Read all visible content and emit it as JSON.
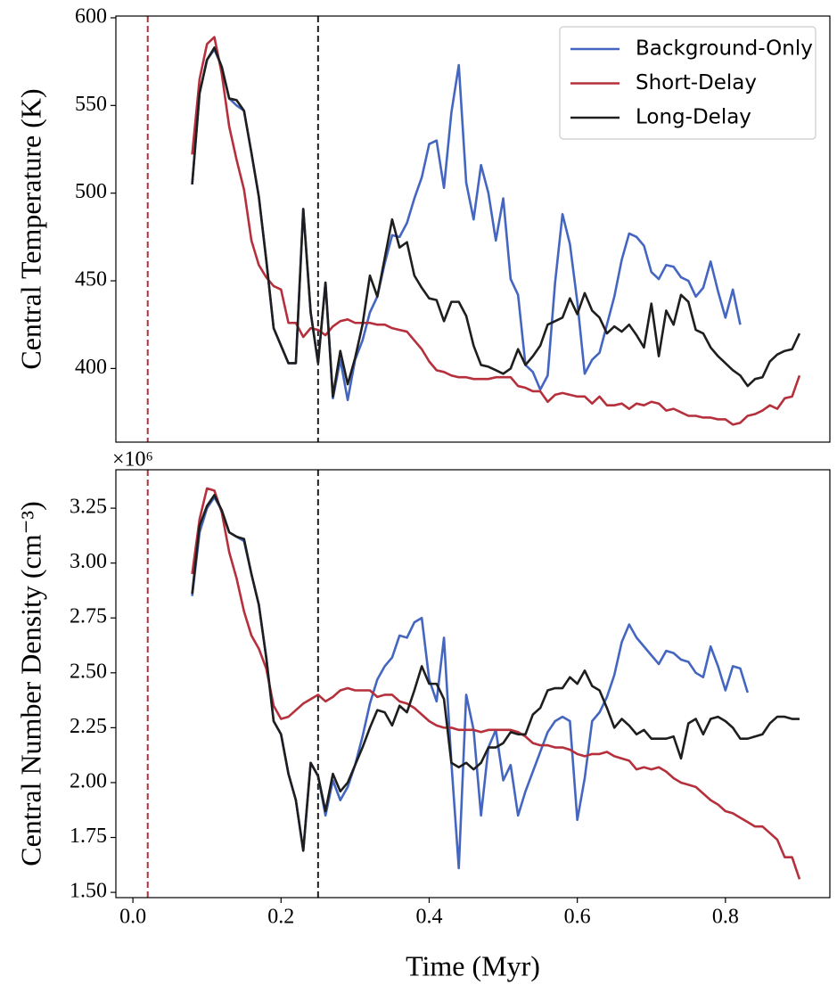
{
  "chart_data": [
    {
      "type": "line",
      "ylabel": "Central Temperature (K)",
      "x": [
        0.08,
        0.09,
        0.1,
        0.11,
        0.12,
        0.13,
        0.14,
        0.15,
        0.16,
        0.17,
        0.18,
        0.19,
        0.2,
        0.21,
        0.22,
        0.23,
        0.24,
        0.25,
        0.26,
        0.27,
        0.28,
        0.29,
        0.3,
        0.31,
        0.32,
        0.33,
        0.34,
        0.35,
        0.36,
        0.37,
        0.38,
        0.39,
        0.4,
        0.41,
        0.42,
        0.43,
        0.44,
        0.45,
        0.46,
        0.47,
        0.48,
        0.49,
        0.5,
        0.51,
        0.52,
        0.53,
        0.54,
        0.55,
        0.56,
        0.57,
        0.58,
        0.59,
        0.6,
        0.61,
        0.62,
        0.63,
        0.64,
        0.65,
        0.66,
        0.67,
        0.68,
        0.69,
        0.7,
        0.71,
        0.72,
        0.73,
        0.74,
        0.75,
        0.76,
        0.77,
        0.78,
        0.79,
        0.8,
        0.81,
        0.82,
        0.83,
        0.84,
        0.85,
        0.86,
        0.87,
        0.88,
        0.89,
        0.9
      ],
      "series": [
        {
          "name": "Background-Only",
          "color": "#4466c0",
          "values": [
            505,
            557,
            576,
            582,
            572,
            554,
            550,
            547,
            523,
            498,
            462,
            423,
            413,
            403,
            403,
            491,
            432,
            403,
            449,
            383,
            405,
            382,
            405,
            416,
            432,
            441,
            460,
            476,
            475,
            483,
            497,
            509,
            528,
            530,
            503,
            546,
            573,
            506,
            485,
            516,
            500,
            473,
            497,
            451,
            442,
            402,
            398,
            388,
            396,
            449,
            488,
            471,
            438,
            397,
            405,
            409,
            425,
            441,
            462,
            477,
            475,
            470,
            455,
            451,
            459,
            458,
            452,
            450,
            441,
            446,
            461,
            444,
            429,
            445,
            425,
            null,
            null,
            null,
            null,
            null,
            null,
            null,
            null
          ]
        },
        {
          "name": "Short-Delay",
          "color": "#b5303c",
          "values": [
            522,
            565,
            585,
            589,
            568,
            538,
            519,
            502,
            473,
            459,
            452,
            447,
            445,
            426,
            426,
            418,
            423,
            422,
            419,
            424,
            427,
            428,
            426,
            426,
            426,
            425,
            425,
            423,
            422,
            421,
            416,
            411,
            404,
            399,
            398,
            396,
            395,
            395,
            394,
            394,
            394,
            395,
            395,
            395,
            390,
            389,
            387,
            387,
            381,
            385,
            386,
            385,
            384,
            384,
            380,
            384,
            379,
            379,
            380,
            377,
            380,
            379,
            381,
            380,
            376,
            377,
            375,
            373,
            373,
            372,
            372,
            371,
            371,
            368,
            369,
            373,
            374,
            376,
            379,
            377,
            383,
            384,
            396
          ]
        },
        {
          "name": "Long-Delay",
          "color": "#1e1e1e",
          "values": [
            505,
            557,
            576,
            583,
            572,
            554,
            553,
            547,
            523,
            498,
            462,
            423,
            413,
            403,
            403,
            491,
            432,
            403,
            449,
            384,
            410,
            391,
            406,
            425,
            453,
            441,
            463,
            485,
            469,
            472,
            453,
            446,
            440,
            439,
            427,
            438,
            438,
            430,
            413,
            402,
            401,
            399,
            397,
            400,
            411,
            402,
            407,
            413,
            425,
            427,
            429,
            440,
            431,
            443,
            433,
            429,
            420,
            424,
            421,
            425,
            419,
            412,
            437,
            407,
            433,
            425,
            442,
            438,
            422,
            420,
            412,
            407,
            403,
            399,
            396,
            390,
            394,
            395,
            404,
            408,
            410,
            411,
            420
          ]
        }
      ],
      "xlim": [
        -0.023,
        0.941
      ],
      "ylim": [
        358,
        601
      ],
      "yticks": [
        400,
        450,
        500,
        550,
        600
      ],
      "vlines": [
        {
          "x": 0.02,
          "color": "#b5303c"
        },
        {
          "x": 0.25,
          "color": "#1e1e1e"
        }
      ],
      "legend": "upper right"
    },
    {
      "type": "line",
      "ylabel": "Central Number Density (cm⁻³)",
      "xlabel": "Time (Myr)",
      "offset_label": "×10⁶",
      "x": [
        0.08,
        0.09,
        0.1,
        0.11,
        0.12,
        0.13,
        0.14,
        0.15,
        0.16,
        0.17,
        0.18,
        0.19,
        0.2,
        0.21,
        0.22,
        0.23,
        0.24,
        0.25,
        0.26,
        0.27,
        0.28,
        0.29,
        0.3,
        0.31,
        0.32,
        0.33,
        0.34,
        0.35,
        0.36,
        0.37,
        0.38,
        0.39,
        0.4,
        0.41,
        0.42,
        0.43,
        0.44,
        0.45,
        0.46,
        0.47,
        0.48,
        0.49,
        0.5,
        0.51,
        0.52,
        0.53,
        0.54,
        0.55,
        0.56,
        0.57,
        0.58,
        0.59,
        0.6,
        0.61,
        0.62,
        0.63,
        0.64,
        0.65,
        0.66,
        0.67,
        0.68,
        0.69,
        0.7,
        0.71,
        0.72,
        0.73,
        0.74,
        0.75,
        0.76,
        0.77,
        0.78,
        0.79,
        0.8,
        0.81,
        0.82,
        0.83,
        0.84,
        0.85,
        0.86,
        0.87,
        0.88,
        0.89,
        0.9
      ],
      "series": [
        {
          "name": "Background-Only",
          "color": "#4466c0",
          "values": [
            2.85,
            3.14,
            3.25,
            3.3,
            3.24,
            3.14,
            3.12,
            3.1,
            2.95,
            2.81,
            2.57,
            2.28,
            2.22,
            2.04,
            1.92,
            1.69,
            2.09,
            2.03,
            1.85,
            2.01,
            1.92,
            1.98,
            2.08,
            2.21,
            2.36,
            2.47,
            2.53,
            2.57,
            2.67,
            2.66,
            2.73,
            2.75,
            2.47,
            2.37,
            2.66,
            2.09,
            1.61,
            2.4,
            2.24,
            1.85,
            2.16,
            2.24,
            2.01,
            2.08,
            1.85,
            1.96,
            2.05,
            2.14,
            2.23,
            2.28,
            2.3,
            2.28,
            1.83,
            2.02,
            2.28,
            2.32,
            2.39,
            2.49,
            2.64,
            2.72,
            2.66,
            2.62,
            2.58,
            2.54,
            2.6,
            2.59,
            2.56,
            2.55,
            2.5,
            2.48,
            2.62,
            2.53,
            2.42,
            2.53,
            2.52,
            2.41,
            null,
            null,
            null,
            null,
            null,
            null,
            null
          ]
        },
        {
          "name": "Short-Delay",
          "color": "#b5303c",
          "values": [
            2.95,
            3.2,
            3.34,
            3.33,
            3.23,
            3.05,
            2.93,
            2.78,
            2.67,
            2.61,
            2.52,
            2.35,
            2.29,
            2.3,
            2.33,
            2.36,
            2.38,
            2.4,
            2.37,
            2.39,
            2.42,
            2.43,
            2.42,
            2.42,
            2.42,
            2.39,
            2.4,
            2.4,
            2.37,
            2.36,
            2.34,
            2.31,
            2.28,
            2.26,
            2.25,
            2.25,
            2.24,
            2.24,
            2.24,
            2.23,
            2.24,
            2.24,
            2.24,
            2.24,
            2.23,
            2.21,
            2.18,
            2.17,
            2.17,
            2.16,
            2.16,
            2.15,
            2.13,
            2.12,
            2.13,
            2.13,
            2.14,
            2.12,
            2.11,
            2.1,
            2.06,
            2.07,
            2.06,
            2.07,
            2.05,
            2.02,
            2.0,
            1.99,
            1.98,
            1.95,
            1.92,
            1.9,
            1.87,
            1.86,
            1.84,
            1.82,
            1.8,
            1.8,
            1.77,
            1.74,
            1.66,
            1.66,
            1.56
          ]
        },
        {
          "name": "Long-Delay",
          "color": "#1e1e1e",
          "values": [
            2.86,
            3.17,
            3.26,
            3.31,
            3.24,
            3.14,
            3.12,
            3.11,
            2.95,
            2.81,
            2.57,
            2.28,
            2.22,
            2.04,
            1.92,
            1.69,
            2.09,
            2.03,
            1.87,
            2.04,
            1.96,
            2.0,
            2.08,
            2.16,
            2.25,
            2.33,
            2.32,
            2.26,
            2.35,
            2.32,
            2.42,
            2.53,
            2.45,
            2.45,
            2.38,
            2.09,
            2.07,
            2.09,
            2.06,
            2.09,
            2.16,
            2.16,
            2.18,
            2.23,
            2.22,
            2.22,
            2.31,
            2.34,
            2.42,
            2.43,
            2.43,
            2.48,
            2.45,
            2.51,
            2.44,
            2.42,
            2.34,
            2.25,
            2.29,
            2.26,
            2.22,
            2.24,
            2.2,
            2.2,
            2.2,
            2.21,
            2.11,
            2.27,
            2.29,
            2.22,
            2.29,
            2.3,
            2.28,
            2.25,
            2.2,
            2.2,
            2.21,
            2.22,
            2.27,
            2.3,
            2.3,
            2.29,
            2.29
          ]
        }
      ],
      "xlim": [
        -0.023,
        0.941
      ],
      "ylim": [
        1.476,
        3.425
      ],
      "xticks": [
        {
          "value": 0,
          "label": "0.0"
        },
        0.2,
        0.4,
        0.6,
        0.8
      ],
      "yticks": [
        {
          "value": 1.5,
          "label": "1.50"
        },
        1.75,
        {
          "value": 2,
          "label": "2.00"
        },
        2.25,
        {
          "value": 2.5,
          "label": "2.50"
        },
        2.75,
        {
          "value": 3,
          "label": "3.00"
        },
        3.25
      ],
      "vlines": [
        {
          "x": 0.02,
          "color": "#b5303c"
        },
        {
          "x": 0.25,
          "color": "#1e1e1e"
        }
      ]
    }
  ]
}
